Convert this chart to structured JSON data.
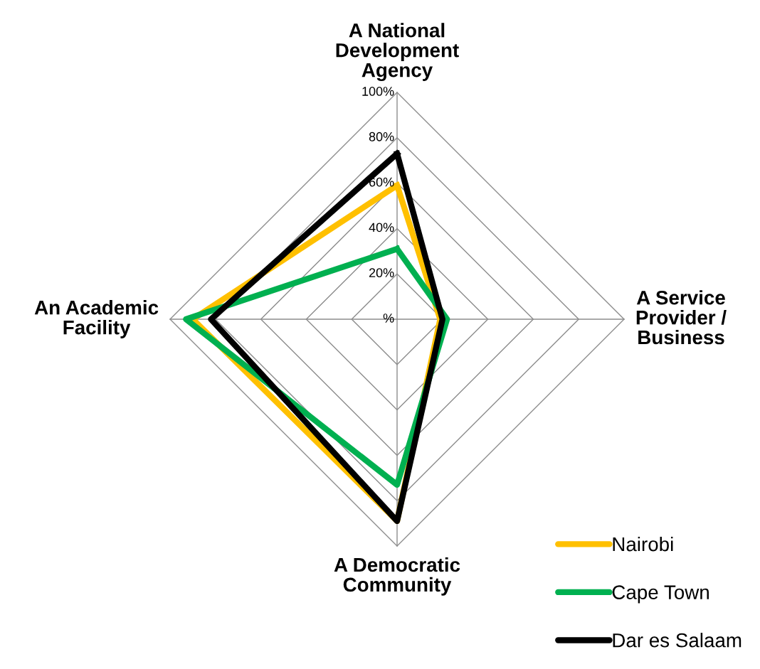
{
  "chart_data": {
    "type": "radar",
    "categories": [
      "A National\nDevelopment\nAgency",
      "A Service\nProvider /\nBusiness",
      "A Democratic\nCommunity",
      "An Academic\nFacility"
    ],
    "series": [
      {
        "name": "Nairobi",
        "color": "#ffc000",
        "values": [
          59,
          19,
          89,
          90
        ]
      },
      {
        "name": "Cape Town",
        "color": "#00b050",
        "values": [
          31,
          22,
          73,
          93
        ]
      },
      {
        "name": "Dar es Salaam",
        "color": "#000000",
        "values": [
          73,
          20,
          89,
          82
        ]
      }
    ],
    "ylim": [
      0,
      100
    ],
    "yticks": [
      {
        "value": 0,
        "label": "%"
      },
      {
        "value": 20,
        "label": "20%"
      },
      {
        "value": 40,
        "label": "40%"
      },
      {
        "value": 60,
        "label": "60%"
      },
      {
        "value": 80,
        "label": "80%"
      },
      {
        "value": 100,
        "label": "100%"
      }
    ],
    "grid": true,
    "legend": "bottom right",
    "marker": "none",
    "line_style": "solid"
  }
}
